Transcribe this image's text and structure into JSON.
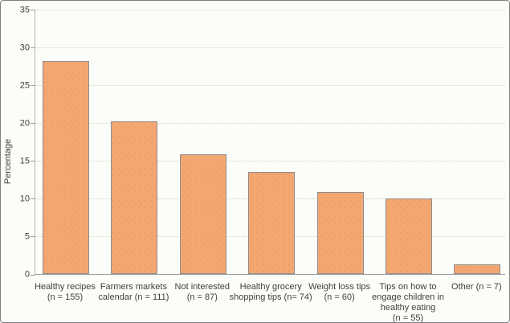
{
  "window": {
    "background": "#FBFDF8",
    "border_color": "#7F7F7F"
  },
  "chart_data": {
    "type": "bar",
    "title": "",
    "xlabel": "",
    "ylabel": "Percentage",
    "ylim": [
      0,
      35
    ],
    "yticks": [
      0,
      5,
      10,
      15,
      20,
      25,
      30,
      35
    ],
    "grid": true,
    "legend": false,
    "categories": [
      "Healthy recipes\n(n = 155)",
      "Farmers markets\ncalendar (n = 111)",
      "Not interested\n(n = 87)",
      "Healthy grocery\nshopping tips (n= 74)",
      "Weight loss tips\n(n = 60)",
      "Tips on how to\nengage children in\nhealthy eating\n(n = 55)",
      "Other (n = 7)"
    ],
    "values": [
      28.2,
      20.2,
      15.8,
      13.5,
      10.9,
      10.0,
      1.3
    ],
    "colors": {
      "bar_fill": "#F4A771",
      "bar_border": "#8E8E8E",
      "gridline": "#E1E5DE",
      "axis": "#9B9B9B",
      "text": "#3F3F3F"
    }
  }
}
